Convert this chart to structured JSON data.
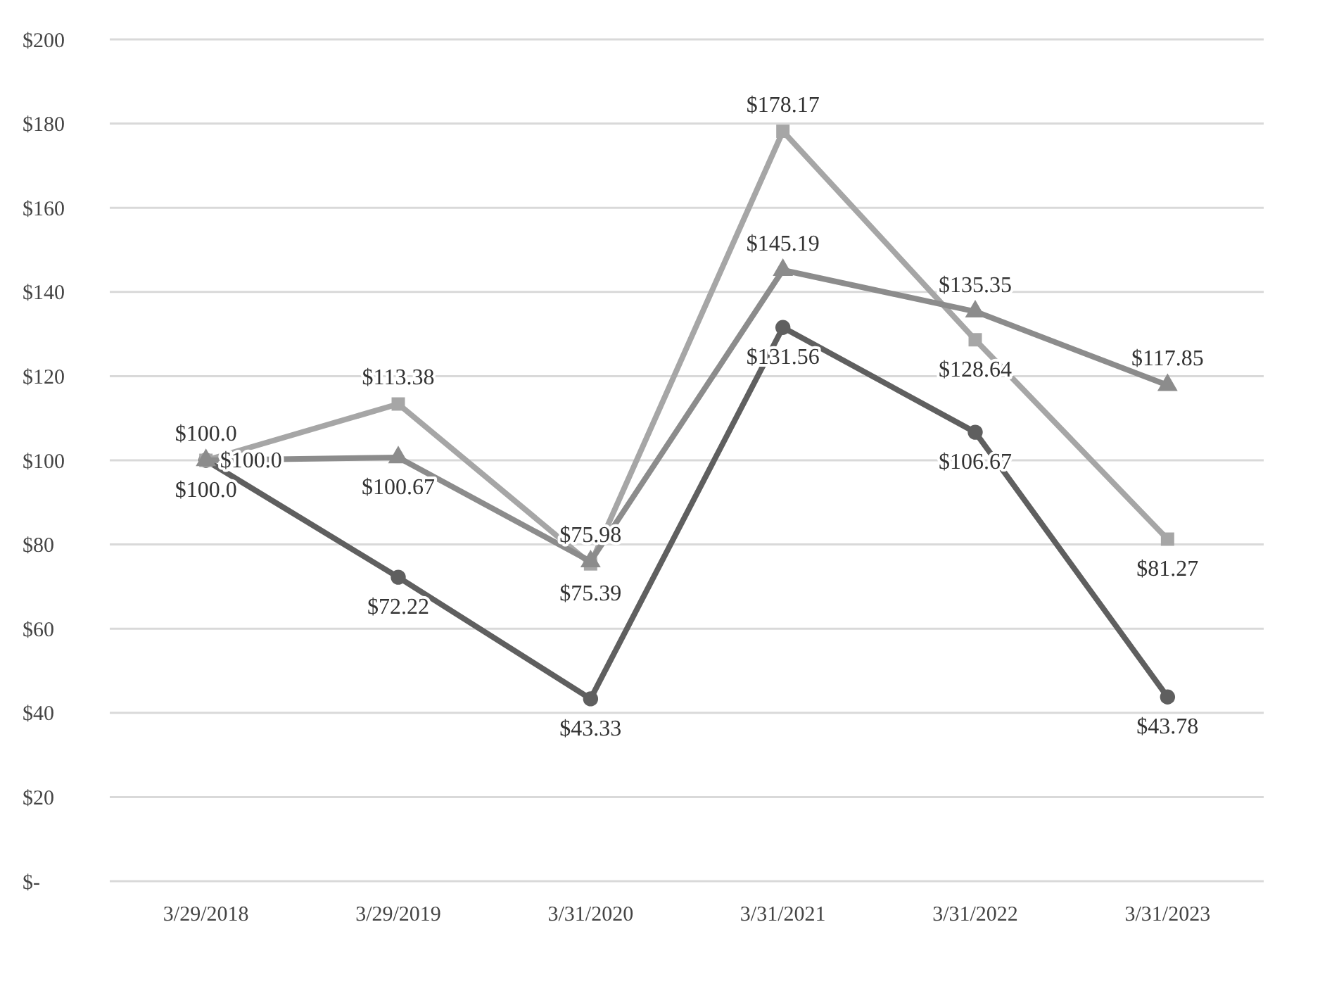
{
  "chart_data": {
    "type": "line",
    "categories": [
      "3/29/2018",
      "3/29/2019",
      "3/31/2020",
      "3/31/2021",
      "3/31/2022",
      "3/31/2023"
    ],
    "series": [
      {
        "color": "#5f5f5f",
        "marker": "circle",
        "values": [
          100.0,
          72.22,
          43.33,
          131.56,
          106.67,
          43.78
        ],
        "value_labels": [
          "$100.0",
          "$72.22",
          "$43.33",
          "$131.56",
          "$106.67",
          "$43.78"
        ]
      },
      {
        "color": "#a6a6a6",
        "marker": "square",
        "values": [
          100.0,
          113.38,
          75.39,
          178.17,
          128.64,
          81.27
        ],
        "value_labels": [
          "$100.0",
          "$113.38",
          "$75.39",
          "$178.17",
          "$128.64",
          "$81.27"
        ]
      },
      {
        "color": "#8c8c8c",
        "marker": "triangle",
        "values": [
          100.0,
          100.67,
          75.98,
          145.19,
          135.35,
          117.85
        ],
        "value_labels": [
          "$100.0",
          "$100.67",
          "$75.98",
          "$145.19",
          "$135.35",
          "$117.85"
        ]
      }
    ],
    "ylim": [
      0,
      200
    ],
    "yticks": [
      {
        "value": 0,
        "label": "$-"
      },
      {
        "value": 20,
        "label": "$20"
      },
      {
        "value": 40,
        "label": "$40"
      },
      {
        "value": 60,
        "label": "$60"
      },
      {
        "value": 80,
        "label": "$80"
      },
      {
        "value": 100,
        "label": "$100"
      },
      {
        "value": 120,
        "label": "$120"
      },
      {
        "value": 140,
        "label": "$140"
      },
      {
        "value": 160,
        "label": "$160"
      },
      {
        "value": 180,
        "label": "$180"
      },
      {
        "value": 200,
        "label": "$200"
      }
    ],
    "grid": "y",
    "line_style": "solid"
  }
}
